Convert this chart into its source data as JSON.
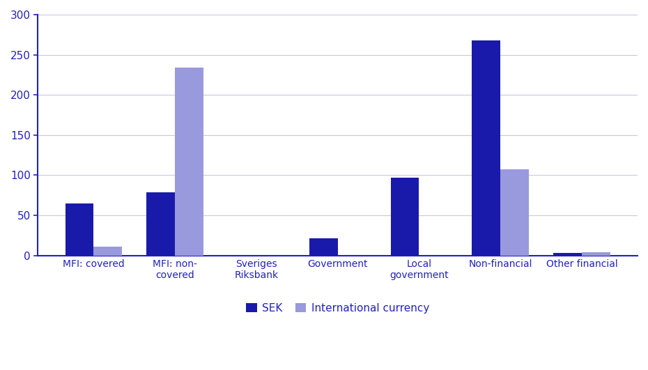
{
  "categories": [
    "MFI: covered",
    "MFI: non-\ncovered",
    "Sveriges\nRiksbank",
    "Government",
    "Local\ngovernment",
    "Non-financial",
    "Other financial"
  ],
  "sek_values": [
    65,
    79,
    0,
    21,
    97,
    268,
    3
  ],
  "intl_values": [
    11,
    234,
    0,
    0,
    0,
    107,
    4
  ],
  "sek_color": "#1a1aaa",
  "intl_color": "#9999dd",
  "ylim": [
    0,
    300
  ],
  "yticks": [
    0,
    50,
    100,
    150,
    200,
    250,
    300
  ],
  "legend_labels": [
    "SEK",
    "International currency"
  ],
  "bar_width": 0.35,
  "background_color": "#ffffff",
  "grid_color": "#c8c8e0",
  "spine_color": "#2222bb",
  "tick_color": "#2222bb",
  "label_color": "#2222bb",
  "figsize": [
    9.3,
    5.31
  ],
  "dpi": 100
}
